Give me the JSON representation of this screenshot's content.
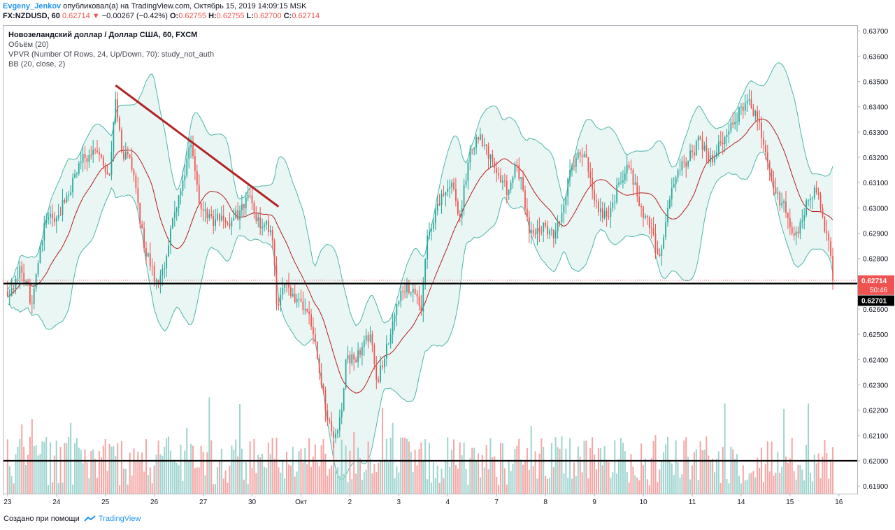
{
  "header": {
    "author": "Evgeny_Jenkov",
    "published": "опубликовал(а) на TradingView.com, Октябрь 15, 2019 14:09:15 MSK",
    "symbol": "FX:NZDUSD, 60",
    "last": "0.62714",
    "change_arrow": "▼",
    "change": "−0.00267 (−0.42%)",
    "o_label": "O:",
    "o_value": "0.62755",
    "h_label": "H:",
    "h_value": "0.62755",
    "l_label": "L:",
    "l_value": "0.62700",
    "c_label": "C:",
    "c_value": "0.62714"
  },
  "legend": {
    "title": "Новозеландский доллар / Доллар США, 60, FXCM",
    "volume": "Объём (20)",
    "vpvr": "VPVR (Number Of Rows, 24, Up/Down, 70): study_not_auth",
    "bb": "BB (20, close, 2)"
  },
  "footer": {
    "created": "Создано при помощи",
    "brand": "TradingView"
  },
  "colors": {
    "up": "#26a69a",
    "down": "#ef5350",
    "vol_up": "#9fd5d0",
    "vol_down": "#f4a7a5",
    "bb_band": "#4db6ac",
    "bb_fill": "#e9f6f4",
    "bb_basis": "#b71c1c",
    "trendline": "#b22222",
    "level": "#000000"
  },
  "chart_data": {
    "type": "candlestick",
    "y_ticks": [
      "0.61900",
      "0.62000",
      "0.62100",
      "0.62200",
      "0.62300",
      "0.62400",
      "0.62500",
      "0.62600",
      "0.62700",
      "0.62800",
      "0.62900",
      "0.63000",
      "0.63100",
      "0.63200",
      "0.63300",
      "0.63400",
      "0.63500",
      "0.63600",
      "0.63700"
    ],
    "ylim": [
      0.6187,
      0.6372
    ],
    "x_ticks": [
      "23",
      "24",
      "25",
      "26",
      "27",
      "30",
      "Окт",
      "2",
      "3",
      "4",
      "7",
      "8",
      "9",
      "10",
      "11",
      "14",
      "15",
      "16"
    ],
    "x_tick_index": [
      0,
      24,
      48,
      72,
      96,
      120,
      144,
      168,
      192,
      216,
      240,
      264,
      288,
      312,
      336,
      360,
      384,
      408
    ],
    "price_tag": {
      "value": "0.62714",
      "countdown": "50:46"
    },
    "level_tag": {
      "value": "0.62701"
    },
    "horizontal_levels": [
      0.62701,
      0.62
    ],
    "trendline": [
      [
        53,
        0.63485
      ],
      [
        133,
        0.63005
      ]
    ],
    "anchors": [
      [
        0,
        0.6265
      ],
      [
        3,
        0.6268
      ],
      [
        6,
        0.6277
      ],
      [
        9,
        0.6271
      ],
      [
        12,
        0.6262
      ],
      [
        18,
        0.6294
      ],
      [
        24,
        0.6296
      ],
      [
        30,
        0.6305
      ],
      [
        36,
        0.6318
      ],
      [
        42,
        0.6323
      ],
      [
        46,
        0.632
      ],
      [
        50,
        0.6313
      ],
      [
        53,
        0.6343
      ],
      [
        56,
        0.6322
      ],
      [
        60,
        0.632
      ],
      [
        64,
        0.6302
      ],
      [
        67,
        0.6284
      ],
      [
        70,
        0.6277
      ],
      [
        74,
        0.627
      ],
      [
        78,
        0.6281
      ],
      [
        81,
        0.6296
      ],
      [
        84,
        0.6305
      ],
      [
        90,
        0.6325
      ],
      [
        94,
        0.6302
      ],
      [
        98,
        0.6296
      ],
      [
        104,
        0.6295
      ],
      [
        110,
        0.6295
      ],
      [
        114,
        0.6299
      ],
      [
        118,
        0.6305
      ],
      [
        121,
        0.6298
      ],
      [
        124,
        0.6292
      ],
      [
        127,
        0.6295
      ],
      [
        130,
        0.6287
      ],
      [
        132,
        0.6262
      ],
      [
        136,
        0.627
      ],
      [
        140,
        0.6266
      ],
      [
        144,
        0.6263
      ],
      [
        148,
        0.6258
      ],
      [
        151,
        0.6247
      ],
      [
        154,
        0.623
      ],
      [
        157,
        0.6216
      ],
      [
        160,
        0.6209
      ],
      [
        162,
        0.6212
      ],
      [
        164,
        0.622
      ],
      [
        166,
        0.624
      ],
      [
        170,
        0.624
      ],
      [
        174,
        0.6245
      ],
      [
        178,
        0.625
      ],
      [
        181,
        0.6232
      ],
      [
        184,
        0.6237
      ],
      [
        188,
        0.625
      ],
      [
        192,
        0.6263
      ],
      [
        196,
        0.627
      ],
      [
        200,
        0.6266
      ],
      [
        203,
        0.6259
      ],
      [
        206,
        0.6289
      ],
      [
        210,
        0.6299
      ],
      [
        214,
        0.6305
      ],
      [
        218,
        0.631
      ],
      [
        222,
        0.6296
      ],
      [
        226,
        0.6318
      ],
      [
        230,
        0.6328
      ],
      [
        234,
        0.6325
      ],
      [
        238,
        0.6318
      ],
      [
        242,
        0.631
      ],
      [
        246,
        0.6307
      ],
      [
        250,
        0.6317
      ],
      [
        253,
        0.6307
      ],
      [
        256,
        0.629
      ],
      [
        260,
        0.6292
      ],
      [
        264,
        0.6293
      ],
      [
        268,
        0.6288
      ],
      [
        272,
        0.6298
      ],
      [
        276,
        0.6315
      ],
      [
        280,
        0.6322
      ],
      [
        284,
        0.632
      ],
      [
        288,
        0.6303
      ],
      [
        292,
        0.6296
      ],
      [
        296,
        0.63
      ],
      [
        300,
        0.631
      ],
      [
        304,
        0.6317
      ],
      [
        308,
        0.631
      ],
      [
        312,
        0.6296
      ],
      [
        316,
        0.6292
      ],
      [
        320,
        0.6281
      ],
      [
        324,
        0.63
      ],
      [
        328,
        0.6312
      ],
      [
        332,
        0.6318
      ],
      [
        336,
        0.6322
      ],
      [
        340,
        0.6327
      ],
      [
        344,
        0.6318
      ],
      [
        348,
        0.6322
      ],
      [
        352,
        0.6328
      ],
      [
        356,
        0.6333
      ],
      [
        360,
        0.634
      ],
      [
        364,
        0.6343
      ],
      [
        368,
        0.6335
      ],
      [
        372,
        0.6322
      ],
      [
        376,
        0.6308
      ],
      [
        380,
        0.6302
      ],
      [
        383,
        0.6296
      ],
      [
        386,
        0.6289
      ],
      [
        390,
        0.6295
      ],
      [
        393,
        0.6303
      ],
      [
        396,
        0.6308
      ],
      [
        399,
        0.63
      ],
      [
        402,
        0.629
      ],
      [
        404,
        0.6281
      ],
      [
        405,
        0.62714
      ]
    ]
  }
}
